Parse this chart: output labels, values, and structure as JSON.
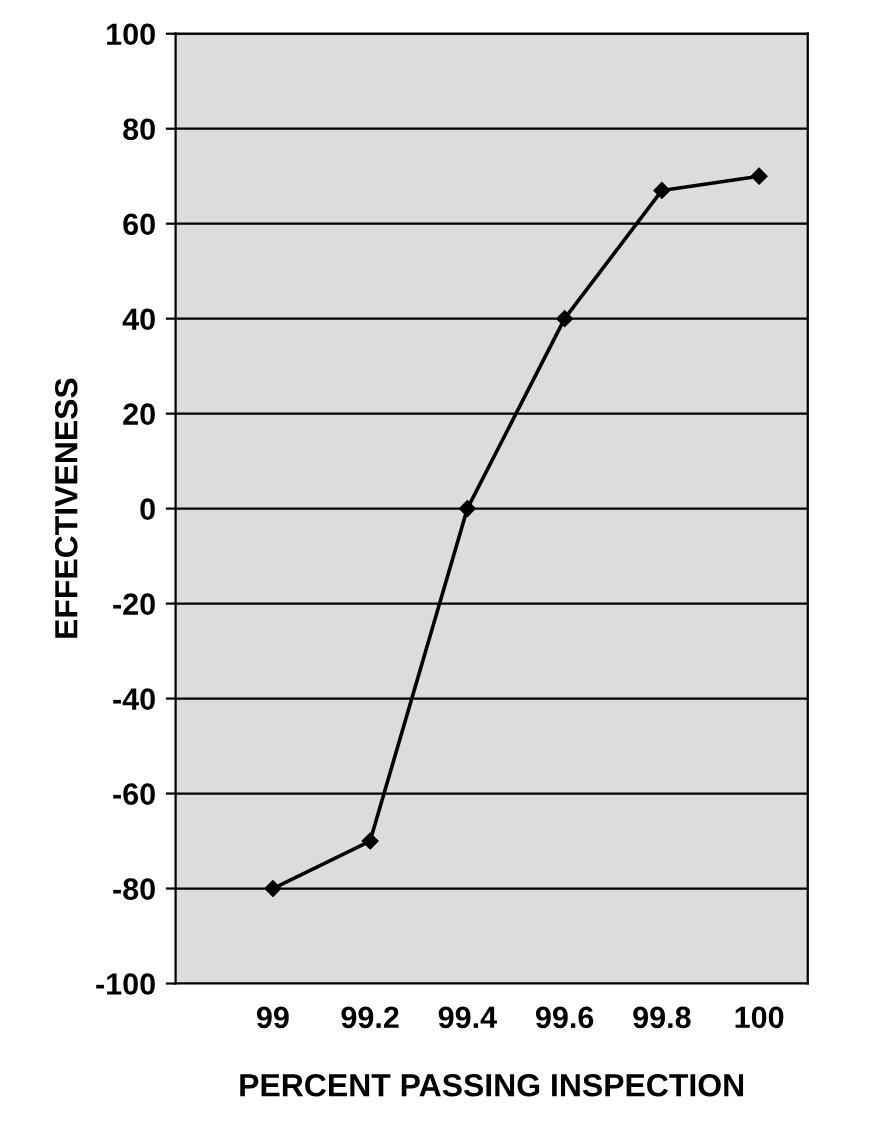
{
  "chart_data": {
    "type": "line",
    "xlabel": "PERCENT PASSING INSPECTION",
    "ylabel": "EFFECTIVENESS",
    "x": [
      99,
      99.2,
      99.4,
      99.6,
      99.8,
      100
    ],
    "series": [
      {
        "color": "#000000",
        "values": [
          -80,
          -70,
          0,
          40,
          67,
          70
        ]
      }
    ],
    "xlim": [
      98.8,
      100.1
    ],
    "ylim": [
      -100,
      100
    ],
    "xticks": [
      99,
      99.2,
      99.4,
      99.6,
      99.8,
      100
    ],
    "yticks": [
      -100,
      -80,
      -60,
      -40,
      -20,
      0,
      20,
      40,
      60,
      80,
      100
    ],
    "grid": "y",
    "marker": "diamond",
    "line_style": "solid"
  }
}
